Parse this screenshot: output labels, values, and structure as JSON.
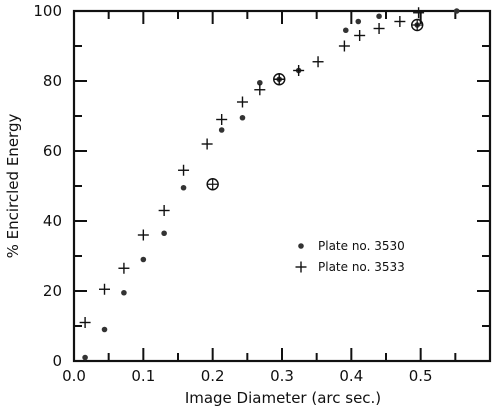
{
  "chart_data": {
    "type": "scatter",
    "title": "",
    "xlabel": "Image Diameter (arc sec.)",
    "ylabel": "% Encircled Energy",
    "xlim": [
      0.0,
      0.6
    ],
    "ylim": [
      0,
      100
    ],
    "x_ticks": [
      "0.0",
      "0.1",
      "0.2",
      "0.3",
      "0.4",
      "0.5"
    ],
    "y_ticks": [
      "0",
      "20",
      "40",
      "60",
      "80",
      "100"
    ],
    "legend_position": "middle-right",
    "grid": false,
    "colors": {
      "ink": "#111111",
      "plate_3530_marker": "#333333",
      "plate_3533_marker": "#111111"
    },
    "series": [
      {
        "name": "Plate no. 3530",
        "marker": "filled-circle",
        "points": [
          [
            0.016,
            1
          ],
          [
            0.044,
            9
          ],
          [
            0.072,
            19.5
          ],
          [
            0.1,
            29
          ],
          [
            0.13,
            36.5
          ],
          [
            0.158,
            49.5
          ],
          [
            0.213,
            66
          ],
          [
            0.243,
            69.5
          ],
          [
            0.268,
            79.5
          ],
          [
            0.296,
            80.5
          ],
          [
            0.324,
            83
          ],
          [
            0.392,
            94.5
          ],
          [
            0.41,
            97
          ],
          [
            0.44,
            98.5
          ],
          [
            0.495,
            96
          ],
          [
            0.552,
            100
          ]
        ]
      },
      {
        "name": "Plate no. 3533",
        "marker": "plus",
        "points": [
          [
            0.016,
            11
          ],
          [
            0.044,
            20.5
          ],
          [
            0.072,
            26.5
          ],
          [
            0.1,
            36
          ],
          [
            0.13,
            43
          ],
          [
            0.158,
            54.5
          ],
          [
            0.192,
            62
          ],
          [
            0.213,
            69
          ],
          [
            0.243,
            74
          ],
          [
            0.268,
            77.5
          ],
          [
            0.296,
            80.5
          ],
          [
            0.324,
            83
          ],
          [
            0.352,
            85.5
          ],
          [
            0.39,
            90
          ],
          [
            0.412,
            93
          ],
          [
            0.44,
            95
          ],
          [
            0.47,
            97
          ],
          [
            0.497,
            99.5
          ]
        ]
      }
    ],
    "highlighted_points": [
      {
        "x": 0.2,
        "y": 50.5
      },
      {
        "x": 0.296,
        "y": 80.5
      },
      {
        "x": 0.495,
        "y": 96
      }
    ]
  }
}
